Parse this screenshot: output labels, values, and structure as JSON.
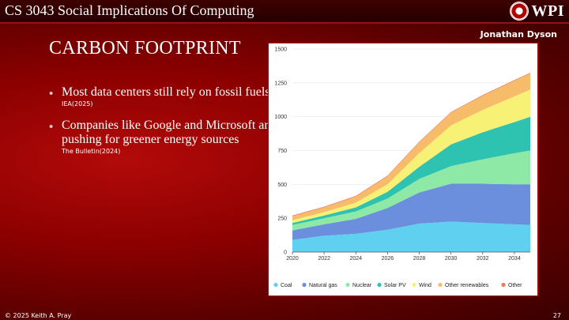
{
  "header": {
    "course_title": "CS 3043 Social Implications Of Computing",
    "logo_text": "WPI",
    "author": "Jonathan Dyson"
  },
  "slide": {
    "title": "CARBON FOOTPRINT",
    "bullets": [
      {
        "text": "Most data centers still rely on fossil fuels.",
        "cite": "IEA(2025)"
      },
      {
        "text": "Companies like Google and Microsoft are pushing for greener energy sources",
        "cite": "The Bulletin(2024)"
      }
    ]
  },
  "footer": {
    "copyright": "© 2025 Keith A. Pray",
    "page_number": "27"
  },
  "chart_data": {
    "type": "area",
    "stacked": true,
    "title": "",
    "xlabel": "",
    "ylabel": "",
    "xlim": [
      2020,
      2035
    ],
    "ylim": [
      0,
      1500
    ],
    "x": [
      2020,
      2022,
      2024,
      2026,
      2028,
      2030,
      2032,
      2034,
      2035
    ],
    "x_ticks": [
      "2020",
      "2022",
      "2024",
      "2026",
      "2028",
      "2030",
      "2032",
      "2034"
    ],
    "y_ticks": [
      "0",
      "250",
      "500",
      "750",
      "1000",
      "1250",
      "1500"
    ],
    "legend_position": "bottom",
    "series": [
      {
        "name": "Coal",
        "color": "#5fd0f0",
        "values": [
          90,
          120,
          135,
          165,
          210,
          225,
          215,
          205,
          200
        ]
      },
      {
        "name": "Natural gas",
        "color": "#6b8fdc",
        "values": [
          70,
          85,
          110,
          160,
          230,
          280,
          290,
          295,
          300
        ]
      },
      {
        "name": "Nuclear",
        "color": "#8ee8a6",
        "values": [
          40,
          45,
          55,
          70,
          100,
          130,
          180,
          230,
          250
        ]
      },
      {
        "name": "Solar PV",
        "color": "#2ec2b0",
        "values": [
          15,
          20,
          30,
          50,
          90,
          160,
          200,
          230,
          250
        ]
      },
      {
        "name": "Wind",
        "color": "#f7f176",
        "values": [
          20,
          25,
          35,
          55,
          100,
          140,
          165,
          190,
          200
        ]
      },
      {
        "name": "Other renewables",
        "color": "#f6bc6a",
        "values": [
          30,
          35,
          45,
          60,
          80,
          95,
          105,
          115,
          120
        ]
      },
      {
        "name": "Other",
        "color": "#ef7a5a",
        "values": [
          5,
          5,
          5,
          5,
          5,
          5,
          5,
          5,
          5
        ]
      }
    ]
  }
}
